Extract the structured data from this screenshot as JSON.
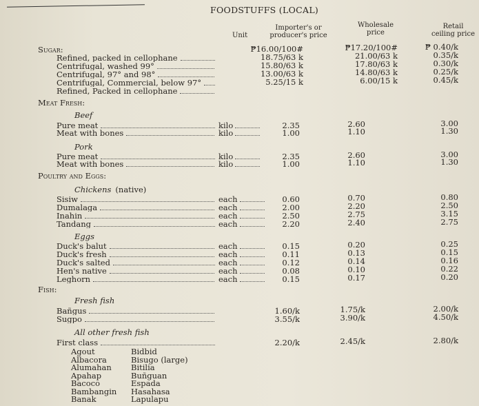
{
  "title": "FOODSTUFFS (LOCAL)",
  "headers": {
    "unit": "Unit",
    "importer": [
      "Importer's or",
      "producer's price"
    ],
    "wholesale": [
      "Wholesale",
      "price"
    ],
    "retail": [
      "Retail",
      "ceiling price"
    ]
  },
  "rows": [
    {
      "type": "section",
      "label": "Sugar:"
    },
    {
      "type": "item",
      "name": "Refined, packed in cellophane",
      "unit": "",
      "importer": "₱16.00/100#",
      "wholesale": "₱17.20/100#",
      "retail": "₱ 0.40/k"
    },
    {
      "type": "item",
      "name": "Centrifugal, washed 99°",
      "unit": "",
      "importer": "18.75/63 k",
      "wholesale": "21.00/63 k",
      "retail": "0.35/k"
    },
    {
      "type": "item",
      "name": "Centrifugal, 97° and 98°",
      "unit": "",
      "importer": "15.80/63 k",
      "wholesale": "17.80/63 k",
      "retail": "0.30/k"
    },
    {
      "type": "item",
      "name": "Centrifugal, Commercial, below 97°",
      "unit": "",
      "importer": "13.00/63 k",
      "wholesale": "14.80/63 k",
      "retail": "0.25/k"
    },
    {
      "type": "item",
      "name": "Refined, Packed in cellophane",
      "unit": "",
      "importer": "5.25/15 k",
      "wholesale": "6.00/15 k",
      "retail": "0.45/k"
    },
    {
      "type": "section",
      "label": "Meat Fresh:"
    },
    {
      "type": "sub",
      "label": "Beef"
    },
    {
      "type": "item",
      "name": "Pure meat",
      "unit": "kilo",
      "importer": "2.35",
      "wholesale": "2.60",
      "retail": "3.00"
    },
    {
      "type": "item",
      "name": "Meat with bones",
      "unit": "kilo",
      "importer": "1.00",
      "wholesale": "1.10",
      "retail": "1.30"
    },
    {
      "type": "sub",
      "label": "Pork"
    },
    {
      "type": "item",
      "name": "Pure meat",
      "unit": "kilo",
      "importer": "2.35",
      "wholesale": "2.60",
      "retail": "3.00"
    },
    {
      "type": "item",
      "name": "Meat with bones",
      "unit": "kilo",
      "importer": "1.00",
      "wholesale": "1.10",
      "retail": "1.30"
    },
    {
      "type": "section",
      "label": "Poultry and Eggs:"
    },
    {
      "type": "sub",
      "label": "Chickens",
      "extra": "(native)"
    },
    {
      "type": "item",
      "name": "Sisiw",
      "unit": "each",
      "importer": "0.60",
      "wholesale": "0.70",
      "retail": "0.80"
    },
    {
      "type": "item",
      "name": "Dumalaga",
      "unit": "each",
      "importer": "2.00",
      "wholesale": "2.20",
      "retail": "2.50"
    },
    {
      "type": "item",
      "name": "Inahin",
      "unit": "each",
      "importer": "2.50",
      "wholesale": "2.75",
      "retail": "3.15"
    },
    {
      "type": "item",
      "name": "Tandang",
      "unit": "each",
      "importer": "2.20",
      "wholesale": "2.40",
      "retail": "2.75"
    },
    {
      "type": "sub",
      "label": "Eggs"
    },
    {
      "type": "item",
      "name": "Duck's balut",
      "unit": "each",
      "importer": "0.15",
      "wholesale": "0.20",
      "retail": "0.25"
    },
    {
      "type": "item",
      "name": "Duck's fresh",
      "unit": "each",
      "importer": "0.11",
      "wholesale": "0.13",
      "retail": "0.15"
    },
    {
      "type": "item",
      "name": "Duck's salted",
      "unit": "each",
      "importer": "0.12",
      "wholesale": "0.14",
      "retail": "0.16"
    },
    {
      "type": "item",
      "name": "Hen's native",
      "unit": "each",
      "importer": "0.08",
      "wholesale": "0.10",
      "retail": "0.22"
    },
    {
      "type": "item",
      "name": "Leghorn",
      "unit": "each",
      "importer": "0.15",
      "wholesale": "0.17",
      "retail": "0.20"
    },
    {
      "type": "section",
      "label": "Fish:"
    },
    {
      "type": "sub",
      "label": "Fresh fish"
    },
    {
      "type": "item",
      "name": "Bañgus",
      "unit": "",
      "importer": "1.60/k",
      "wholesale": "1.75/k",
      "retail": "2.00/k"
    },
    {
      "type": "item",
      "name": "Sugpo",
      "unit": "",
      "importer": "3.55/k",
      "wholesale": "3.90/k",
      "retail": "4.50/k"
    },
    {
      "type": "sub",
      "label": "All other fresh fish"
    },
    {
      "type": "item",
      "name": "First class",
      "unit": "",
      "importer": "2.20/k",
      "wholesale": "2.45/k",
      "retail": "2.80/k"
    }
  ],
  "first_class_fish": {
    "col1": [
      "Agout",
      "Albacora",
      "Alumahan",
      "Apahap",
      "Bacoco",
      "Bambangin",
      "Banak"
    ],
    "col2": [
      "Bidbid",
      "Bisugo (large)",
      "Bitilia",
      "Buñguan",
      "Espada",
      "Hasahasa",
      "Lapulapu"
    ]
  }
}
